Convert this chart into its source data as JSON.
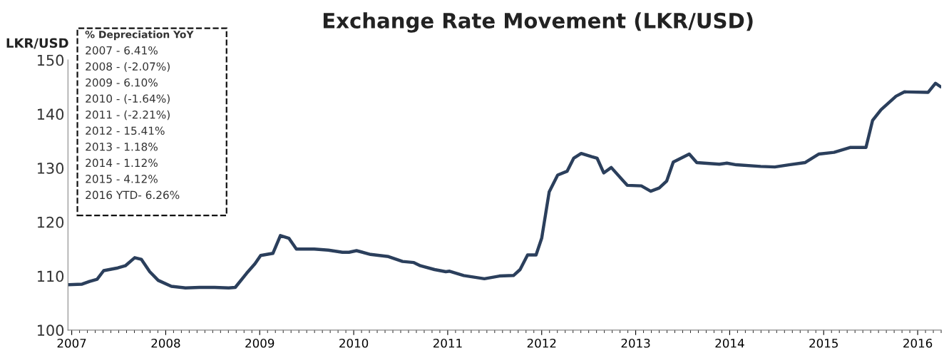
{
  "chart_data": {
    "type": "line",
    "title": "Exchange Rate Movement (LKR/USD)",
    "ylabel": "LKR/USD",
    "annotations": [
      "% Depreciation YoY",
      "2007 - 6.41%",
      "2008 - (-2.07%)",
      "2009 - 6.10%",
      "2010 - (-1.64%)",
      "2011 - (-2.21%)",
      "2012 - 15.41%",
      "2013 - 1.18%",
      "2014 - 1.12%",
      "2015 - 4.12%",
      "2016 YTD- 6.26%"
    ],
    "x": [
      2006.97,
      2007.11,
      2007.19,
      2007.27,
      2007.34,
      2007.49,
      2007.57,
      2007.67,
      2007.74,
      2007.83,
      2007.92,
      2008.06,
      2008.21,
      2008.36,
      2008.52,
      2008.67,
      2008.74,
      2008.86,
      2008.95,
      2009.01,
      2009.14,
      2009.22,
      2009.31,
      2009.39,
      2009.58,
      2009.73,
      2009.88,
      2009.95,
      2010.03,
      2010.18,
      2010.37,
      2010.52,
      2010.64,
      2010.71,
      2010.86,
      2010.98,
      2011.02,
      2011.17,
      2011.39,
      2011.55,
      2011.7,
      2011.77,
      2011.85,
      2011.94,
      2012.0,
      2012.08,
      2012.17,
      2012.27,
      2012.34,
      2012.42,
      2012.53,
      2012.59,
      2012.66,
      2012.74,
      2012.91,
      2013.06,
      2013.16,
      2013.25,
      2013.33,
      2013.4,
      2013.57,
      2013.65,
      2013.89,
      2013.97,
      2014.07,
      2014.33,
      2014.48,
      2014.63,
      2014.8,
      2014.95,
      2015.11,
      2015.28,
      2015.45,
      2015.52,
      2015.61,
      2015.77,
      2015.86,
      2016.11,
      2016.19,
      2016.24
    ],
    "series": [
      {
        "color": "#2b3f5c",
        "values": [
          108.4,
          108.5,
          109.0,
          109.4,
          111.0,
          111.5,
          111.9,
          113.4,
          113.1,
          110.8,
          109.2,
          108.1,
          107.8,
          107.9,
          107.9,
          107.8,
          107.9,
          110.5,
          112.3,
          113.8,
          114.2,
          117.5,
          117.0,
          115.0,
          115.0,
          114.8,
          114.4,
          114.4,
          114.7,
          114.0,
          113.6,
          112.7,
          112.5,
          111.9,
          111.2,
          110.8,
          110.9,
          110.1,
          109.5,
          110.0,
          110.1,
          111.2,
          113.9,
          113.9,
          117.0,
          125.6,
          128.7,
          129.4,
          131.8,
          132.7,
          132.1,
          131.8,
          129.1,
          130.1,
          126.8,
          126.7,
          125.7,
          126.3,
          127.6,
          131.1,
          132.6,
          131.0,
          130.7,
          130.9,
          130.6,
          130.3,
          130.2,
          130.6,
          131.0,
          132.6,
          132.9,
          133.8,
          133.8,
          138.8,
          140.8,
          143.3,
          144.1,
          144.0,
          145.7,
          145.1
        ]
      }
    ],
    "xlim": [
      2006.96,
      2016.25
    ],
    "xticks": [
      2007,
      2008,
      2009,
      2010,
      2011,
      2012,
      2013,
      2014,
      2015,
      2016
    ],
    "ylim": [
      100,
      150
    ],
    "yticks": [
      100,
      110,
      120,
      130,
      140,
      150
    ],
    "grid": false,
    "marker": "none",
    "line_style": "solid"
  }
}
